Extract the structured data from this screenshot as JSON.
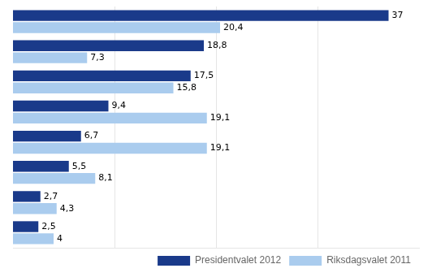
{
  "chart_data": {
    "type": "bar",
    "orientation": "horizontal",
    "categories": [
      null,
      null,
      null,
      null,
      null,
      null,
      null,
      null
    ],
    "series": [
      {
        "name": "Presidentvalet 2012",
        "color": "#1a3a8a",
        "values": [
          37.0,
          18.8,
          17.5,
          9.4,
          6.7,
          5.5,
          2.7,
          2.5
        ],
        "value_labels": [
          "37",
          "18,8",
          "17,5",
          "9,4",
          "6,7",
          "5,5",
          "2,7",
          "2,5"
        ]
      },
      {
        "name": "Riksdagsvalet 2011",
        "color": "#aaccee",
        "values": [
          20.4,
          7.3,
          15.8,
          19.1,
          19.1,
          8.1,
          4.3,
          4.0
        ],
        "value_labels": [
          "20,4",
          "7,3",
          "15,8",
          "19,1",
          "19,1",
          "8,1",
          "4,3",
          "4"
        ]
      }
    ],
    "xlim": [
      0,
      40
    ],
    "xticks": [
      10,
      20,
      30
    ],
    "grid": true,
    "tick_labels": false,
    "data_labels": true,
    "legend": "lower right"
  }
}
